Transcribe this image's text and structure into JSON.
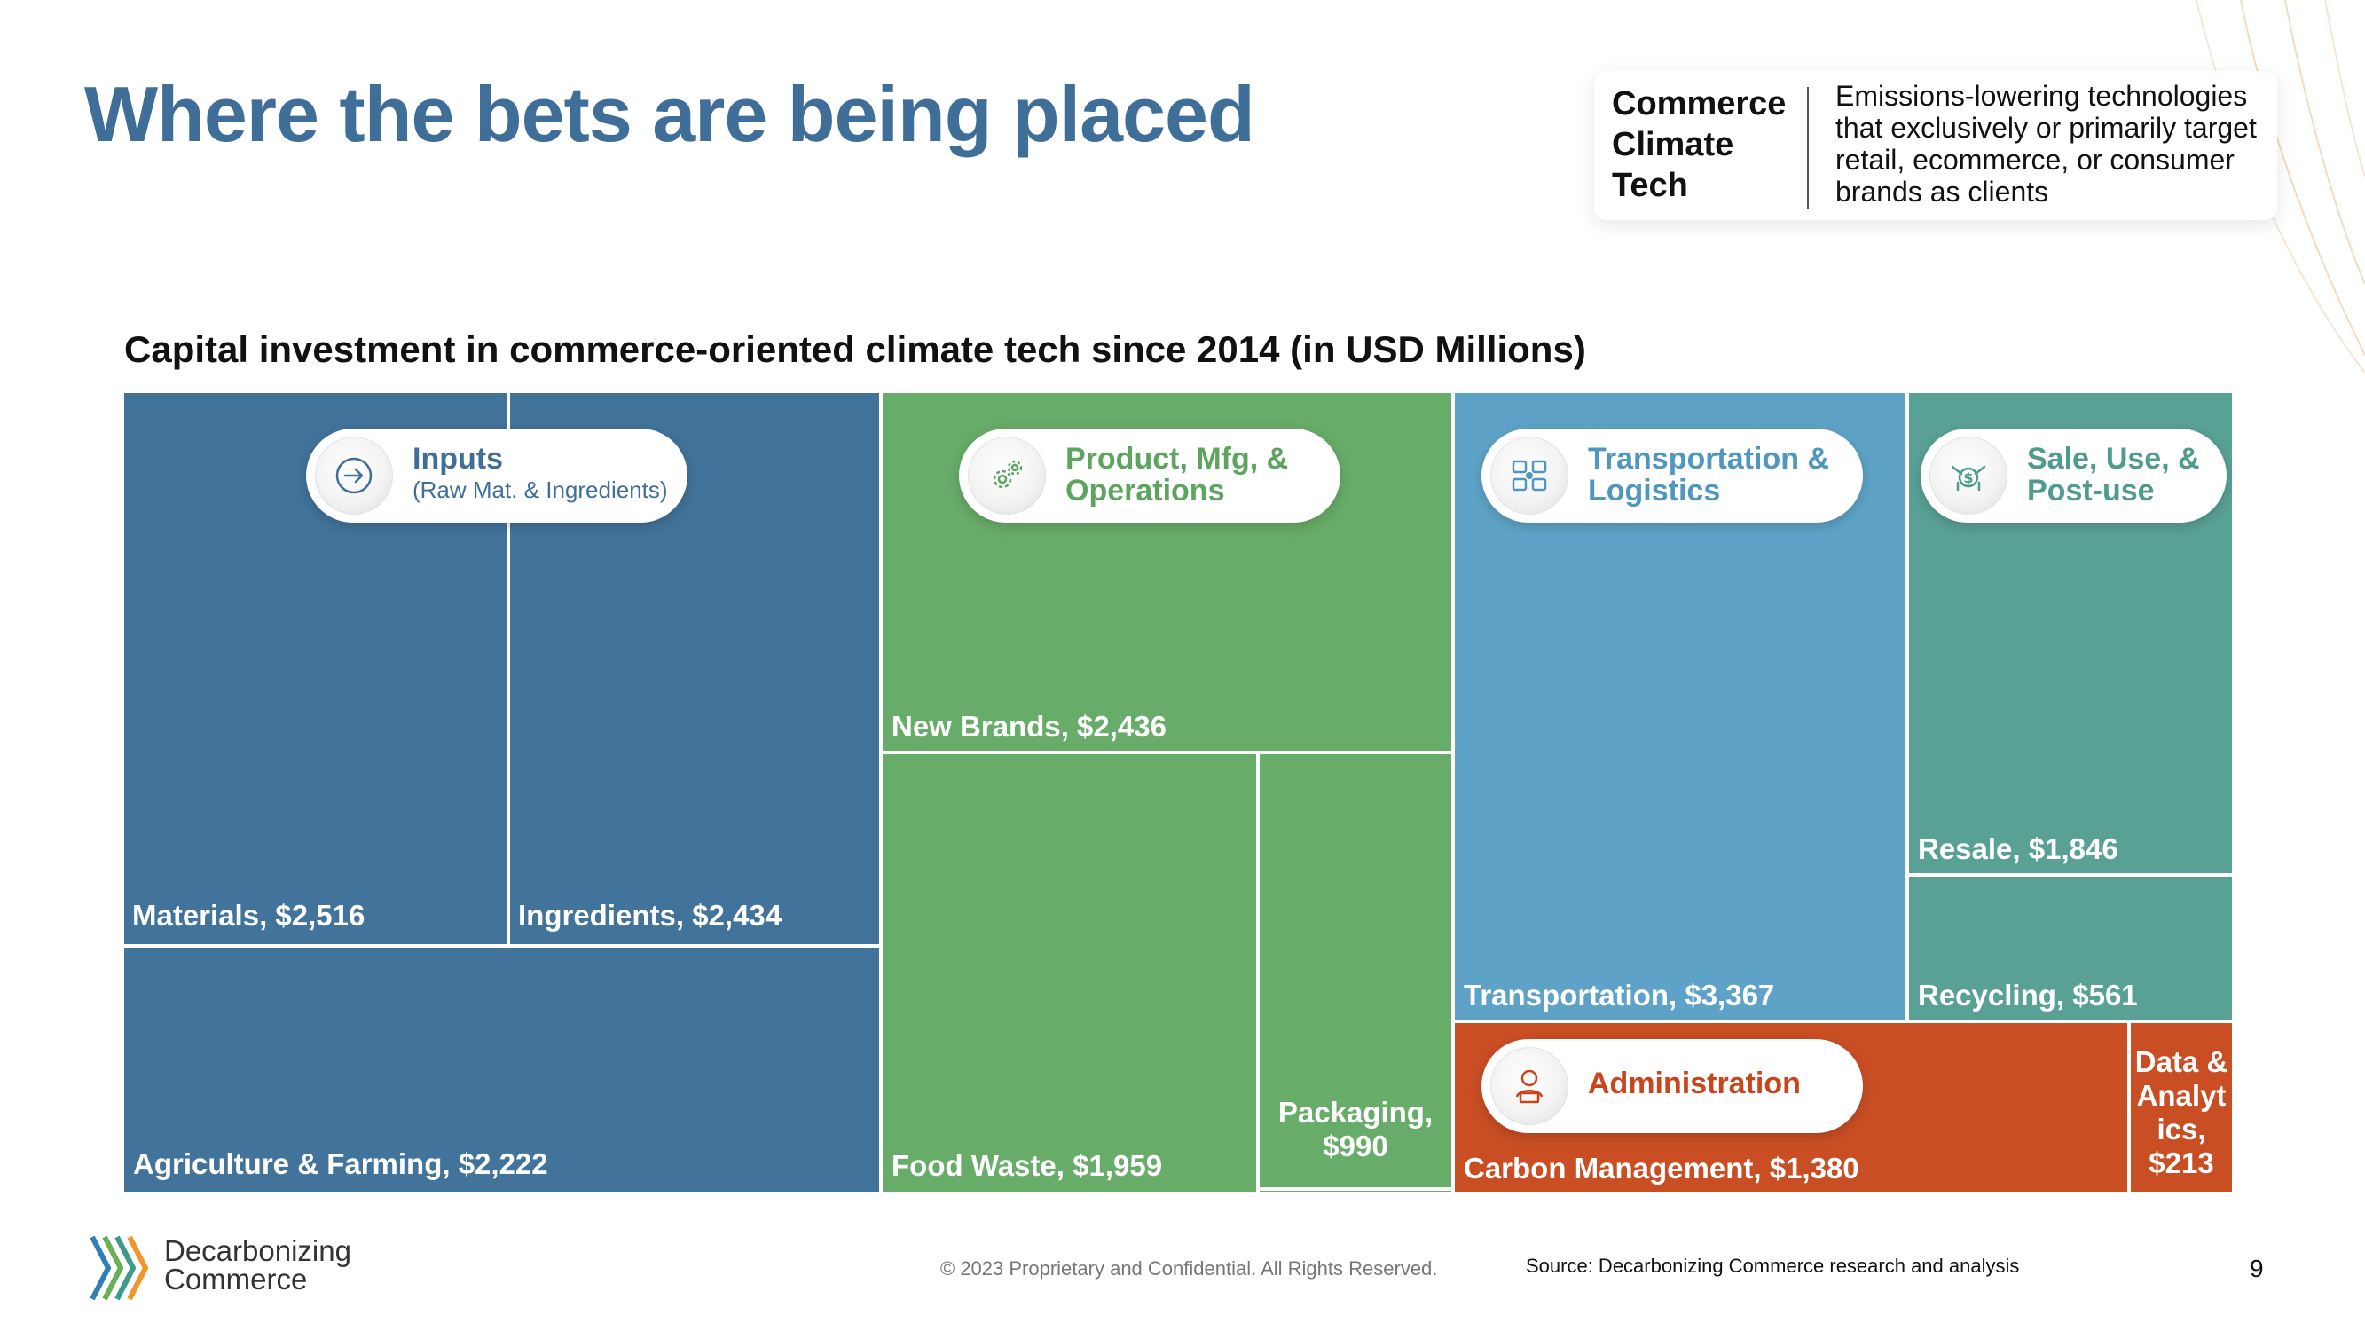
{
  "page": {
    "title": "Where the bets are being placed",
    "definition": {
      "term_lines": [
        "Commerce",
        "Climate",
        "Tech"
      ],
      "text": "Emissions-lowering technologies that exclusively or primarily target retail, ecommerce, or consumer brands as clients"
    },
    "footer": {
      "logo_lines": [
        "Decarbonizing",
        "Commerce"
      ],
      "copyright": "© 2023 Proprietary and Confidential. All Rights Reserved.",
      "source": "Source: Decarbonizing Commerce research and analysis",
      "page_number": "9"
    }
  },
  "colors": {
    "title": "#3f6f99",
    "inputs": "#42739a",
    "product": "#68ac69",
    "transport": "#5ea3c7",
    "sale": "#5aa195",
    "admin": "#ca4e24",
    "pill_inputs_text": "#3f6f99",
    "pill_product_text": "#5da55f",
    "pill_transport_text": "#4f97bf",
    "pill_sale_text": "#4f9b8d",
    "pill_admin_text": "#c8461e"
  },
  "chart_data": {
    "type": "treemap",
    "title": "Capital investment in commerce-oriented climate tech since 2014 (in USD Millions)",
    "unit": "USD Millions",
    "groups": [
      {
        "name": "Inputs",
        "subtitle": "(Raw Mat. & Ingredients)",
        "icon": "arrow-circle-icon",
        "items": [
          {
            "label": "Materials, $2,516",
            "value": 2516
          },
          {
            "label": "Ingredients, $2,434",
            "value": 2434
          },
          {
            "label": "Agriculture & Farming, $2,222",
            "value": 2222
          }
        ]
      },
      {
        "name": "Product, Mfg, & Operations",
        "icon": "gears-icon",
        "items": [
          {
            "label": "New Brands, $2,436",
            "value": 2436
          },
          {
            "label": "Food Waste, $1,959",
            "value": 1959
          },
          {
            "label": "Packaging, $990",
            "value": 990
          }
        ]
      },
      {
        "name": "Transportation & Logistics",
        "icon": "logistics-icon",
        "items": [
          {
            "label": "Transportation, $3,367",
            "value": 3367
          }
        ]
      },
      {
        "name": "Sale, Use, & Post-use",
        "icon": "money-hand-icon",
        "items": [
          {
            "label": "Resale, $1,846",
            "value": 1846
          },
          {
            "label": "Recycling, $561",
            "value": 561
          }
        ]
      },
      {
        "name": "Administration",
        "icon": "person-laptop-icon",
        "items": [
          {
            "label": "Carbon Management, $1,380",
            "value": 1380
          },
          {
            "label": "Data & Analyt ics, $213",
            "value": 213
          }
        ]
      }
    ]
  }
}
